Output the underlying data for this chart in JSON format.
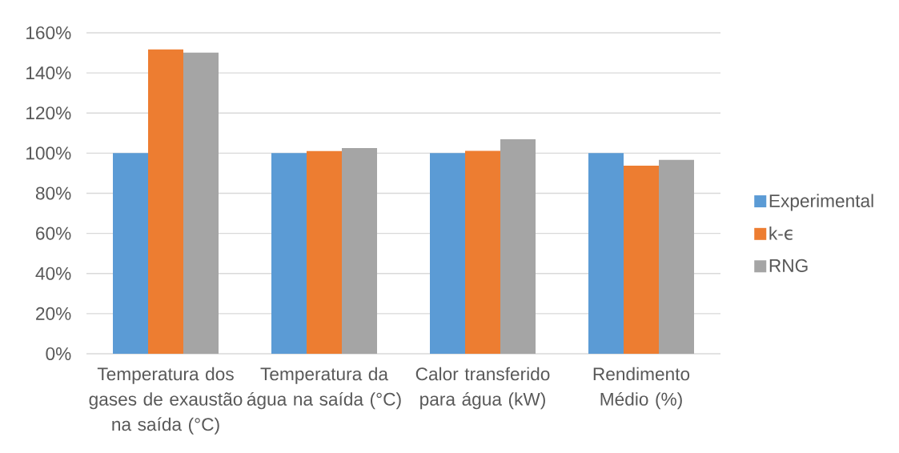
{
  "chart_data": {
    "type": "bar",
    "categories": [
      "Temperatura dos gases de exaustão na saída (°C)",
      "Temperatura da água na saída (°C)",
      "Calor transferido para água (kW)",
      "Rendimento Médio (%)"
    ],
    "series": [
      {
        "name": "Experimental",
        "color": "#5b9bd5",
        "values": [
          100,
          100,
          100,
          100
        ]
      },
      {
        "name": "k-ϵ",
        "color": "#ed7d31",
        "values": [
          151.7,
          101.0,
          101.1,
          93.8
        ]
      },
      {
        "name": "RNG",
        "color": "#a5a5a5",
        "values": [
          150.1,
          102.5,
          106.9,
          96.7
        ]
      }
    ],
    "ylim": [
      0,
      160
    ],
    "yticks": [
      {
        "value": 0,
        "label": "0%"
      },
      {
        "value": 20,
        "label": "20%"
      },
      {
        "value": 40,
        "label": "40%"
      },
      {
        "value": 60,
        "label": "60%"
      },
      {
        "value": 80,
        "label": "80%"
      },
      {
        "value": 100,
        "label": "100%"
      },
      {
        "value": 120,
        "label": "120%"
      },
      {
        "value": 140,
        "label": "140%"
      },
      {
        "value": 160,
        "label": "160%"
      }
    ],
    "grid": "y",
    "legend": "right"
  }
}
